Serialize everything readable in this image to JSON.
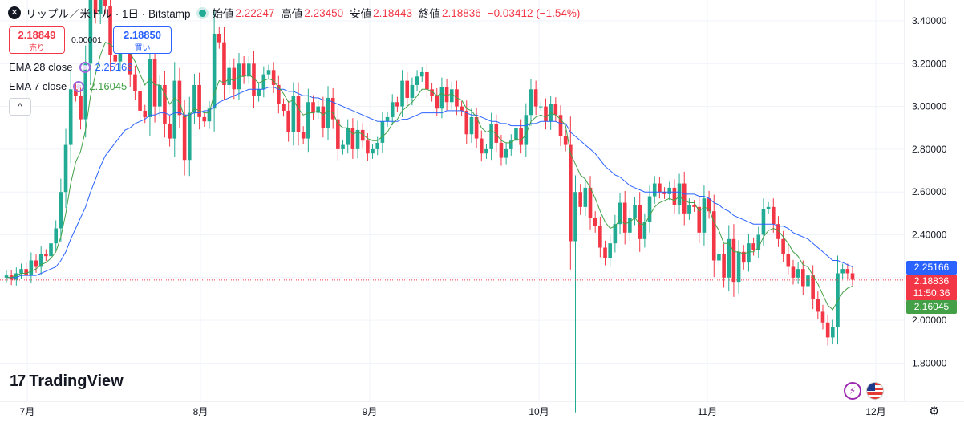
{
  "header": {
    "symbol_icon": "close-x-icon",
    "title": "リップル／米ドル · 1日 · Bitstamp",
    "open_label": "始値",
    "open": "2.22247",
    "high_label": "高値",
    "high": "2.23450",
    "low_label": "安値",
    "low": "2.18443",
    "close_label": "終値",
    "close": "2.18836",
    "change": "−0.03412 (−1.54%)"
  },
  "trade": {
    "sell_price": "2.18849",
    "sell_label": "売り",
    "spread": "0.00001",
    "buy_price": "2.18850",
    "buy_label": "買い"
  },
  "indicators": [
    {
      "name": "EMA 28 close",
      "value": "2.25166",
      "color": "#2962ff"
    },
    {
      "name": "EMA 7 close",
      "value": "2.16045",
      "color": "#43a047"
    }
  ],
  "collapse_label": "^",
  "axis_tags": {
    "ema28": "2.25166",
    "last_price": "2.18836",
    "countdown": "11:50:36",
    "ema7": "2.16045"
  },
  "logo": {
    "mark": "17",
    "text": "TradingView"
  },
  "chart_data": {
    "type": "candlestick",
    "y_ticks": [
      "3.40000",
      "3.20000",
      "3.00000",
      "2.80000",
      "2.60000",
      "2.40000",
      "2.20000",
      "2.00000",
      "1.80000"
    ],
    "x_ticks": [
      "7月",
      "8月",
      "9月",
      "10月",
      "11月",
      "12月"
    ],
    "ylim": [
      1.72,
      3.46
    ],
    "colors": {
      "up": "#22ab94",
      "down": "#f23645",
      "ema28": "#2962ff",
      "ema7": "#43a047"
    },
    "closes": [
      2.21,
      2.19,
      2.22,
      2.24,
      2.21,
      2.28,
      2.25,
      2.31,
      2.3,
      2.36,
      2.43,
      2.6,
      2.82,
      3.08,
      3.05,
      2.94,
      3.2,
      3.52,
      3.43,
      3.53,
      3.47,
      3.24,
      3.21,
      3.32,
      3.3,
      3.15,
      3.07,
      2.98,
      2.95,
      3.22,
      3.0,
      3.1,
      2.92,
      2.85,
      3.12,
      2.96,
      2.75,
      2.97,
      3.1,
      2.95,
      2.93,
      2.99,
      3.34,
      3.3,
      3.1,
      3.18,
      3.08,
      3.2,
      3.14,
      3.2,
      3.05,
      3.08,
      3.15,
      3.17,
      3.1,
      3.01,
      2.98,
      2.88,
      3.05,
      2.88,
      2.85,
      3.02,
      2.97,
      3.0,
      2.9,
      3.04,
      2.94,
      2.8,
      2.82,
      2.9,
      2.8,
      2.89,
      2.84,
      2.78,
      2.8,
      2.83,
      2.93,
      2.95,
      3.02,
      3.0,
      3.12,
      3.04,
      3.1,
      3.14,
      3.16,
      3.08,
      3.05,
      2.99,
      3.09,
      3.02,
      3.08,
      3.0,
      2.98,
      2.87,
      2.95,
      2.85,
      2.78,
      2.8,
      2.92,
      2.83,
      2.76,
      2.8,
      2.84,
      2.9,
      2.82,
      2.96,
      3.08,
      3.0,
      3.0,
      2.93,
      3.01,
      2.96,
      2.86,
      2.82,
      2.37,
      2.6,
      2.53,
      2.62,
      2.48,
      2.44,
      2.34,
      2.29,
      2.36,
      2.45,
      2.55,
      2.41,
      2.48,
      2.54,
      2.38,
      2.46,
      2.58,
      2.64,
      2.6,
      2.59,
      2.62,
      2.54,
      2.64,
      2.5,
      2.54,
      2.53,
      2.41,
      2.57,
      2.51,
      2.28,
      2.31,
      2.2,
      2.38,
      2.18,
      2.32,
      2.27,
      2.36,
      2.33,
      2.4,
      2.52,
      2.53,
      2.45,
      2.38,
      2.31,
      2.25,
      2.2,
      2.24,
      2.16,
      2.21,
      2.1,
      2.04,
      1.99,
      1.92,
      1.97,
      2.22,
      2.24,
      2.22,
      2.19
    ],
    "ema28": [
      2.2,
      2.2,
      2.2,
      2.21,
      2.21,
      2.21,
      2.21,
      2.22,
      2.23,
      2.24,
      2.25,
      2.28,
      2.32,
      2.38,
      2.43,
      2.48,
      2.53,
      2.6,
      2.66,
      2.72,
      2.77,
      2.8,
      2.83,
      2.86,
      2.89,
      2.9,
      2.92,
      2.93,
      2.94,
      2.96,
      2.96,
      2.97,
      2.97,
      2.96,
      2.97,
      2.97,
      2.96,
      2.96,
      2.97,
      2.97,
      2.98,
      2.98,
      3.0,
      3.02,
      3.03,
      3.04,
      3.05,
      3.06,
      3.07,
      3.08,
      3.08,
      3.08,
      3.08,
      3.09,
      3.09,
      3.08,
      3.08,
      3.07,
      3.07,
      3.06,
      3.05,
      3.05,
      3.04,
      3.04,
      3.03,
      3.03,
      3.02,
      3.01,
      3.0,
      2.99,
      2.98,
      2.97,
      2.96,
      2.95,
      2.94,
      2.93,
      2.93,
      2.93,
      2.93,
      2.93,
      2.94,
      2.94,
      2.95,
      2.96,
      2.97,
      2.97,
      2.97,
      2.97,
      2.97,
      2.98,
      2.98,
      2.98,
      2.98,
      2.97,
      2.96,
      2.96,
      2.95,
      2.94,
      2.93,
      2.93,
      2.92,
      2.92,
      2.91,
      2.91,
      2.91,
      2.91,
      2.92,
      2.92,
      2.93,
      2.93,
      2.93,
      2.93,
      2.92,
      2.92,
      2.88,
      2.86,
      2.84,
      2.82,
      2.8,
      2.78,
      2.75,
      2.72,
      2.7,
      2.68,
      2.67,
      2.65,
      2.63,
      2.62,
      2.61,
      2.6,
      2.6,
      2.6,
      2.6,
      2.6,
      2.6,
      2.6,
      2.6,
      2.59,
      2.59,
      2.59,
      2.58,
      2.58,
      2.57,
      2.55,
      2.54,
      2.52,
      2.51,
      2.49,
      2.48,
      2.47,
      2.46,
      2.45,
      2.45,
      2.45,
      2.45,
      2.45,
      2.44,
      2.44,
      2.43,
      2.41,
      2.4,
      2.39,
      2.38,
      2.36,
      2.34,
      2.32,
      2.3,
      2.28,
      2.28,
      2.27,
      2.26,
      2.25
    ],
    "ema7": [
      2.2,
      2.2,
      2.21,
      2.22,
      2.22,
      2.23,
      2.24,
      2.26,
      2.27,
      2.29,
      2.32,
      2.39,
      2.5,
      2.64,
      2.74,
      2.79,
      2.89,
      3.05,
      3.15,
      3.24,
      3.3,
      3.29,
      3.27,
      3.28,
      3.29,
      3.25,
      3.21,
      3.15,
      3.1,
      3.13,
      3.1,
      3.1,
      3.06,
      3.01,
      3.04,
      3.02,
      2.95,
      2.96,
      2.99,
      2.98,
      2.97,
      2.97,
      3.06,
      3.12,
      3.11,
      3.13,
      3.12,
      3.14,
      3.14,
      3.15,
      3.13,
      3.11,
      3.12,
      3.13,
      3.12,
      3.09,
      3.06,
      3.02,
      3.03,
      2.99,
      2.96,
      2.97,
      2.97,
      2.98,
      2.96,
      2.98,
      2.97,
      2.92,
      2.9,
      2.9,
      2.87,
      2.88,
      2.87,
      2.85,
      2.84,
      2.84,
      2.86,
      2.88,
      2.92,
      2.94,
      2.98,
      3.0,
      3.02,
      3.05,
      3.08,
      3.08,
      3.07,
      3.05,
      3.06,
      3.05,
      3.06,
      3.04,
      3.03,
      2.99,
      2.98,
      2.95,
      2.9,
      2.88,
      2.89,
      2.87,
      2.84,
      2.83,
      2.83,
      2.85,
      2.84,
      2.87,
      2.93,
      2.95,
      2.96,
      2.95,
      2.97,
      2.96,
      2.94,
      2.91,
      2.78,
      2.73,
      2.68,
      2.66,
      2.62,
      2.57,
      2.51,
      2.46,
      2.43,
      2.44,
      2.47,
      2.45,
      2.46,
      2.48,
      2.45,
      2.45,
      2.49,
      2.53,
      2.55,
      2.56,
      2.57,
      2.56,
      2.58,
      2.56,
      2.55,
      2.55,
      2.51,
      2.53,
      2.52,
      2.46,
      2.42,
      2.36,
      2.36,
      2.32,
      2.32,
      2.31,
      2.32,
      2.32,
      2.34,
      2.39,
      2.42,
      2.43,
      2.42,
      2.39,
      2.36,
      2.32,
      2.3,
      2.26,
      2.25,
      2.21,
      2.17,
      2.12,
      2.07,
      2.05,
      2.09,
      2.13,
      2.15,
      2.16
    ]
  }
}
